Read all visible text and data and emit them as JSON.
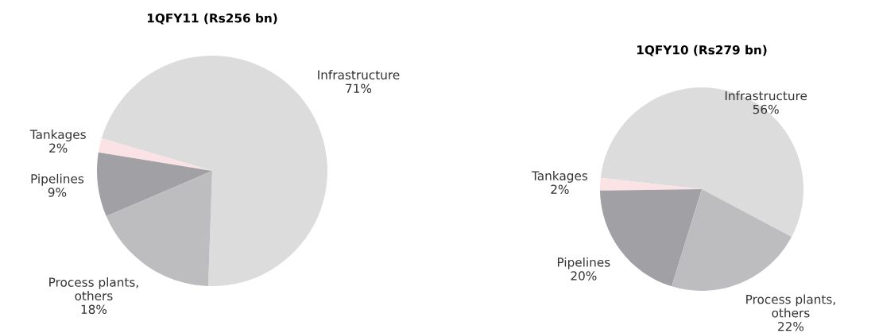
{
  "chart_data": [
    {
      "type": "pie",
      "title": "1QFY11 (Rs256 bn)",
      "categories": [
        "Infrastructure",
        "Tankages",
        "Pipelines",
        "Process plants,\nothers"
      ],
      "values": [
        71,
        2,
        9,
        18
      ],
      "value_labels": [
        "71%",
        "2%",
        "9%",
        "18%"
      ],
      "colors": [
        "#dcdcdd",
        "#fbe3e5",
        "#a1a1a5",
        "#bdbdbf"
      ]
    },
    {
      "type": "pie",
      "title": "1QFY10 (Rs279 bn)",
      "categories": [
        "Infrastructure",
        "Tankages",
        "Pipelines",
        "Process plants,\nothers"
      ],
      "values": [
        56,
        2,
        20,
        22
      ],
      "value_labels": [
        "56%",
        "2%",
        "20%",
        "22%"
      ],
      "colors": [
        "#dcdcdd",
        "#fbe3e5",
        "#a1a1a5",
        "#bdbdbf"
      ]
    }
  ]
}
